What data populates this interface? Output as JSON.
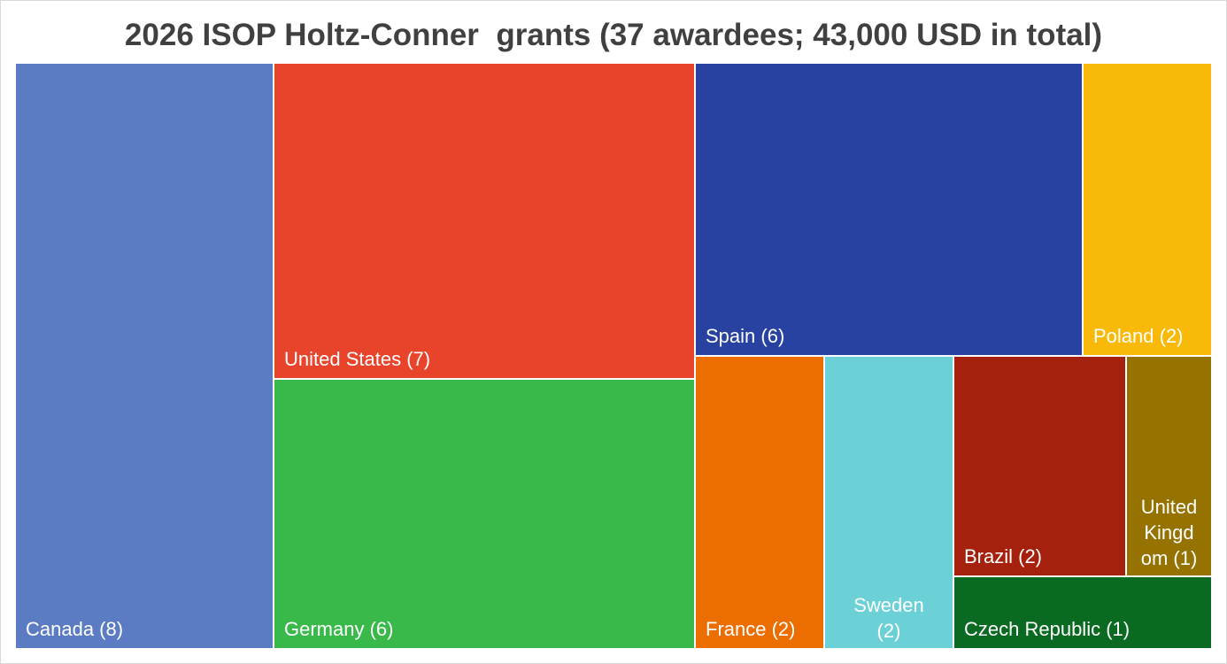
{
  "chart_data": {
    "type": "treemap",
    "title": "2026 ISOP Holtz-Conner  grants (37 awardees; 43,000 USD in total)",
    "items": [
      {
        "name": "Canada",
        "awardees": 8,
        "label": "Canada (8)",
        "color": "#5b7cc2"
      },
      {
        "name": "United States",
        "awardees": 7,
        "label": "United States (7)",
        "color": "#e8432b"
      },
      {
        "name": "Germany",
        "awardees": 6,
        "label": "Germany (6)",
        "color": "#38b94a"
      },
      {
        "name": "Spain",
        "awardees": 6,
        "label": "Spain (6)",
        "color": "#2742a0"
      },
      {
        "name": "Poland",
        "awardees": 2,
        "label": "Poland (2)",
        "color": "#f9b908"
      },
      {
        "name": "France",
        "awardees": 2,
        "label": "France (2)",
        "color": "#ec6d00"
      },
      {
        "name": "Sweden",
        "awardees": 2,
        "label": "Sweden\n(2)",
        "color": "#6bd1d6"
      },
      {
        "name": "Brazil",
        "awardees": 2,
        "label": "Brazil (2)",
        "color": "#a5200d"
      },
      {
        "name": "United Kingdom",
        "awardees": 1,
        "label": "United\nKingd\nom (1)",
        "color": "#967300"
      },
      {
        "name": "Czech Republic",
        "awardees": 1,
        "label": "Czech Republic (1)",
        "color": "#0a6a22"
      }
    ]
  }
}
